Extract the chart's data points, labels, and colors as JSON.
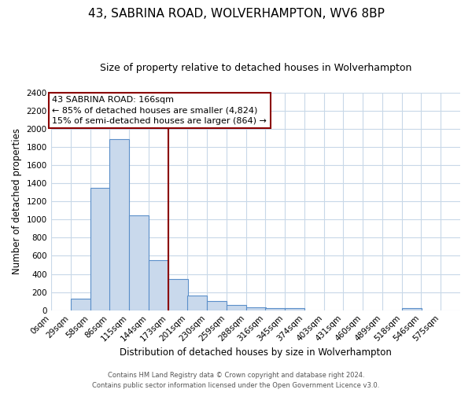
{
  "title": "43, SABRINA ROAD, WOLVERHAMPTON, WV6 8BP",
  "subtitle": "Size of property relative to detached houses in Wolverhampton",
  "xlabel": "Distribution of detached houses by size in Wolverhampton",
  "ylabel": "Number of detached properties",
  "bar_left_edges": [
    0,
    29,
    58,
    86,
    115,
    144,
    173,
    201,
    230,
    259,
    288,
    316,
    345,
    374,
    403,
    431,
    460,
    489,
    518,
    546
  ],
  "bar_heights": [
    0,
    125,
    1350,
    1890,
    1050,
    550,
    340,
    160,
    105,
    60,
    30,
    20,
    20,
    0,
    0,
    0,
    0,
    0,
    20,
    0
  ],
  "bin_width": 29,
  "bar_color": "#c9d9ec",
  "bar_edge_color": "#5b8fc9",
  "vline_x": 173,
  "vline_color": "#8b0000",
  "ann_line1": "43 SABRINA ROAD: 166sqm",
  "ann_line2": "← 85% of detached houses are smaller (4,824)",
  "ann_line3": "15% of semi-detached houses are larger (864) →",
  "annotation_box_color": "#ffffff",
  "annotation_box_edge_color": "#8b0000",
  "ylim": [
    0,
    2400
  ],
  "yticks": [
    0,
    200,
    400,
    600,
    800,
    1000,
    1200,
    1400,
    1600,
    1800,
    2000,
    2200,
    2400
  ],
  "xtick_labels": [
    "0sqm",
    "29sqm",
    "58sqm",
    "86sqm",
    "115sqm",
    "144sqm",
    "173sqm",
    "201sqm",
    "230sqm",
    "259sqm",
    "288sqm",
    "316sqm",
    "345sqm",
    "374sqm",
    "403sqm",
    "431sqm",
    "460sqm",
    "489sqm",
    "518sqm",
    "546sqm",
    "575sqm"
  ],
  "xlim_left": 0,
  "xlim_right": 604,
  "footer1": "Contains HM Land Registry data © Crown copyright and database right 2024.",
  "footer2": "Contains public sector information licensed under the Open Government Licence v3.0.",
  "bg_color": "#ffffff",
  "grid_color": "#c8d8e8",
  "title_fontsize": 11,
  "subtitle_fontsize": 9,
  "axis_label_fontsize": 8.5,
  "tick_fontsize": 7.5,
  "annotation_fontsize": 8,
  "footer_fontsize": 6
}
